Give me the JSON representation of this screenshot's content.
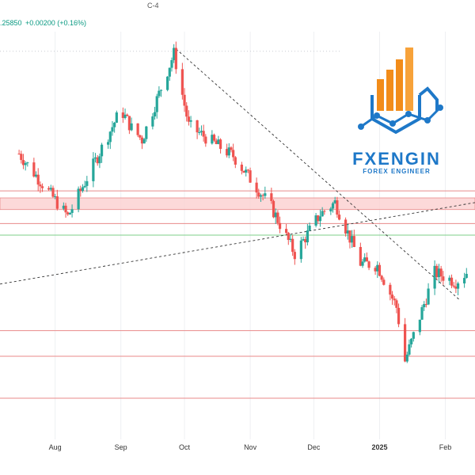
{
  "header": {
    "symbol_suffix": "C-4",
    "price_fragment": ".25850",
    "change": "+0.00200 (+0.16%)"
  },
  "colors": {
    "bull": "#26a69a",
    "bear": "#ef5350",
    "support_line": "#e88a8a",
    "zone_fill": "#fbd0d0",
    "green_line": "#7ccf8a",
    "trend_line": "#333333",
    "logo_orange": "#f28c1a",
    "logo_blue": "#1e78c8"
  },
  "logo": {
    "name": "FXENGIN",
    "tagline": "FOREX ENGINEER"
  },
  "chart_data": {
    "type": "candlestick",
    "x_ticks": [
      "Aug",
      "Sep",
      "Oct",
      "Nov",
      "Dec",
      "2025",
      "Feb"
    ],
    "series": [
      {
        "date": "2024-07-15",
        "close": 1.299
      },
      {
        "date": "2024-08-07",
        "close": 1.272
      },
      {
        "date": "2024-09-01",
        "close": 1.318
      },
      {
        "date": "2024-09-06",
        "close": 1.31
      },
      {
        "date": "2024-09-11",
        "close": 1.305
      },
      {
        "date": "2024-09-26",
        "close": 1.342
      },
      {
        "date": "2024-10-03",
        "close": 1.311
      },
      {
        "date": "2024-10-24",
        "close": 1.298
      },
      {
        "date": "2024-11-11",
        "close": 1.276
      },
      {
        "date": "2024-11-22",
        "close": 1.256
      },
      {
        "date": "2024-12-04",
        "close": 1.273
      },
      {
        "date": "2024-12-11",
        "close": 1.278
      },
      {
        "date": "2024-12-23",
        "close": 1.252
      },
      {
        "date": "2024-12-31",
        "close": 1.251
      },
      {
        "date": "2025-01-09",
        "close": 1.233
      },
      {
        "date": "2025-01-13",
        "close": 1.21
      },
      {
        "date": "2025-01-27",
        "close": 1.248
      },
      {
        "date": "2025-02-06",
        "close": 1.244
      },
      {
        "date": "2025-02-11",
        "close": 1.248
      }
    ],
    "horizontal_levels": [
      1.283,
      1.269,
      1.223,
      1.212,
      1.194
    ],
    "resistance_zone": [
      1.275,
      1.28
    ],
    "green_level": 1.264
  }
}
